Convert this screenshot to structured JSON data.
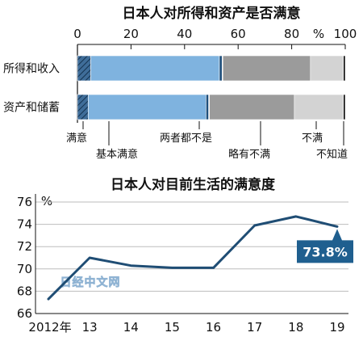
{
  "chart_data": [
    {
      "type": "bar",
      "orientation": "horizontal",
      "stacked": true,
      "title": "日本人对所得和资产是否满意",
      "xlim": [
        0,
        100
      ],
      "x_ticks": [
        "0",
        "20",
        "40",
        "60",
        "80",
        "100"
      ],
      "x_unit": "%",
      "categories": [
        "所得和收入",
        "资产和储蓄"
      ],
      "series": [
        {
          "name": "满意",
          "values": [
            5,
            4
          ],
          "color": "#3f6d99",
          "pattern": "hatch"
        },
        {
          "name": "基本满意",
          "values": [
            48,
            44
          ],
          "color": "#7fb3df"
        },
        {
          "name": "",
          "values": [
            1,
            1
          ],
          "color": "#1e4f7c"
        },
        {
          "name": "两者都不是",
          "values": [
            0.3,
            0.3
          ],
          "color": "#e6e6e6"
        },
        {
          "name": "略有不满",
          "values": [
            32.7,
            31.7
          ],
          "color": "#9b9b9b"
        },
        {
          "name": "不满",
          "values": [
            12.3,
            18.3
          ],
          "color": "#d3d3d3"
        },
        {
          "name": "不知道",
          "values": [
            0.7,
            0.7
          ],
          "color": "#111111"
        }
      ],
      "legend_labels": [
        "满意",
        "基本满意",
        "两者都不是",
        "略有不满",
        "不满",
        "不知道"
      ]
    },
    {
      "type": "line",
      "title": "日本人对目前生活的满意度",
      "y_unit": "%",
      "ylim": [
        66,
        76
      ],
      "y_ticks": [
        "66",
        "68",
        "70",
        "72",
        "74",
        "76"
      ],
      "x_ticks": [
        "2012年",
        "13",
        "14",
        "15",
        "16",
        "17",
        "18",
        "19"
      ],
      "x": [
        2012,
        2013,
        2014,
        2015,
        2016,
        2017,
        2018,
        2019
      ],
      "series": [
        {
          "values": [
            67.3,
            71.0,
            70.3,
            70.1,
            70.1,
            73.9,
            74.7,
            73.8
          ],
          "color": "#1f4d74"
        }
      ],
      "callout": {
        "text": "73.8%",
        "color": "#1f5f8f"
      }
    }
  ],
  "watermark": "日经中文网"
}
